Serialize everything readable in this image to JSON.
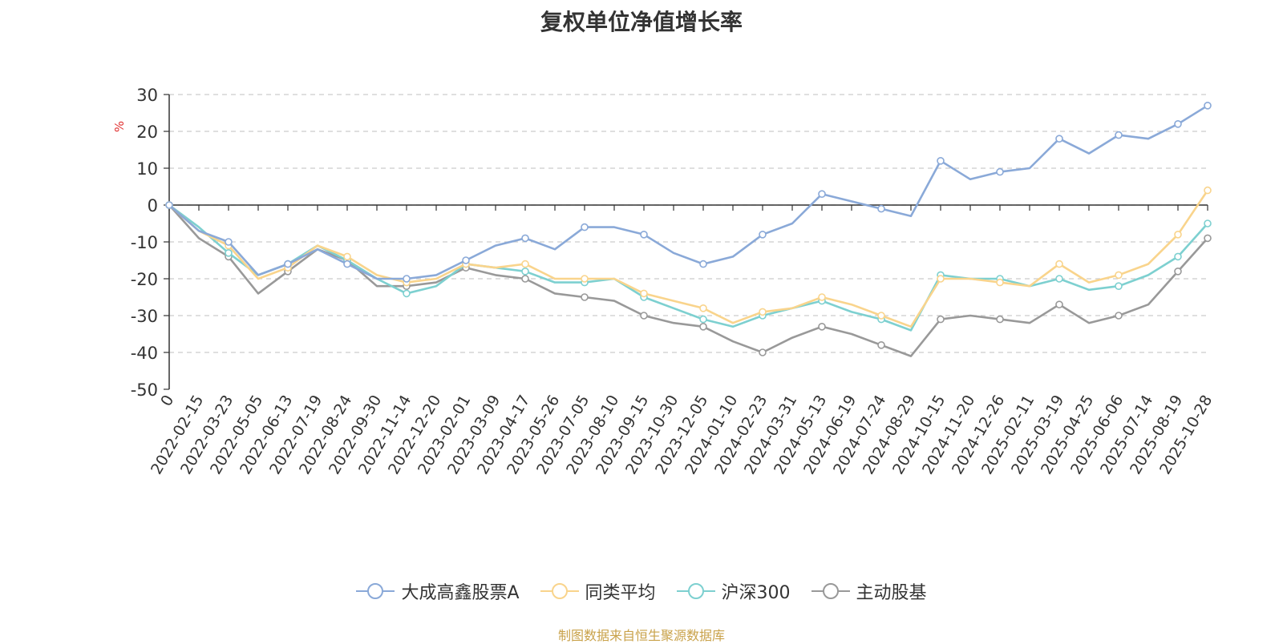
{
  "chart_data": {
    "type": "line",
    "title": "复权单位净值增长率",
    "ylabel": "%",
    "ylim": [
      -50,
      30
    ],
    "yticks": [
      30,
      20,
      10,
      0,
      -10,
      -20,
      -30,
      -40,
      -50
    ],
    "grid": true,
    "legend_position": "bottom",
    "categories": [
      "0",
      "2022-02-15",
      "2022-03-23",
      "2022-05-05",
      "2022-06-13",
      "2022-07-19",
      "2022-08-24",
      "2022-09-30",
      "2022-11-14",
      "2022-12-20",
      "2023-02-01",
      "2023-03-09",
      "2023-04-17",
      "2023-05-26",
      "2023-07-05",
      "2023-08-10",
      "2023-09-15",
      "2023-10-30",
      "2023-12-05",
      "2024-01-10",
      "2024-02-23",
      "2024-03-31",
      "2024-05-13",
      "2024-06-19",
      "2024-07-24",
      "2024-08-29",
      "2024-10-15",
      "2024-11-20",
      "2024-12-26",
      "2025-02-11",
      "2025-03-19",
      "2025-04-25",
      "2025-06-06",
      "2025-07-14",
      "2025-08-19",
      "2025-10-28"
    ],
    "series": [
      {
        "name": "大成高鑫股票A",
        "color": "#8aa9d8",
        "values": [
          0,
          -7,
          -10,
          -19,
          -16,
          -12,
          -16,
          -20,
          -20,
          -19,
          -15,
          -11,
          -9,
          -12,
          -6,
          -6,
          -8,
          -13,
          -16,
          -14,
          -8,
          -5,
          3,
          1,
          -1,
          -3,
          12,
          7,
          9,
          10,
          18,
          14,
          19,
          18,
          22,
          27
        ]
      },
      {
        "name": "同类平均",
        "color": "#f9d48c",
        "values": [
          0,
          -7,
          -11,
          -20,
          -17,
          -11,
          -14,
          -19,
          -21,
          -20,
          -16,
          -17,
          -16,
          -20,
          -20,
          -20,
          -24,
          -26,
          -28,
          -32,
          -29,
          -28,
          -25,
          -27,
          -30,
          -33,
          -20,
          -20,
          -21,
          -22,
          -16,
          -21,
          -19,
          -16,
          -8,
          4
        ]
      },
      {
        "name": "沪深300",
        "color": "#7dd0d0",
        "values": [
          0,
          -6,
          -13,
          -19,
          -16,
          -11,
          -15,
          -20,
          -24,
          -22,
          -16,
          -17,
          -18,
          -21,
          -21,
          -20,
          -25,
          -28,
          -31,
          -33,
          -30,
          -28,
          -26,
          -29,
          -31,
          -34,
          -19,
          -20,
          -20,
          -22,
          -20,
          -23,
          -22,
          -19,
          -14,
          -5
        ]
      },
      {
        "name": "主动股基",
        "color": "#999999",
        "values": [
          0,
          -9,
          -14,
          -24,
          -18,
          -12,
          -15,
          -22,
          -22,
          -21,
          -17,
          -19,
          -20,
          -24,
          -25,
          -26,
          -30,
          -32,
          -33,
          -37,
          -40,
          -36,
          -33,
          -35,
          -38,
          -41,
          -31,
          -30,
          -31,
          -32,
          -27,
          -32,
          -30,
          -27,
          -18,
          -9
        ]
      }
    ]
  },
  "footer": "制图数据来自恒生聚源数据库"
}
